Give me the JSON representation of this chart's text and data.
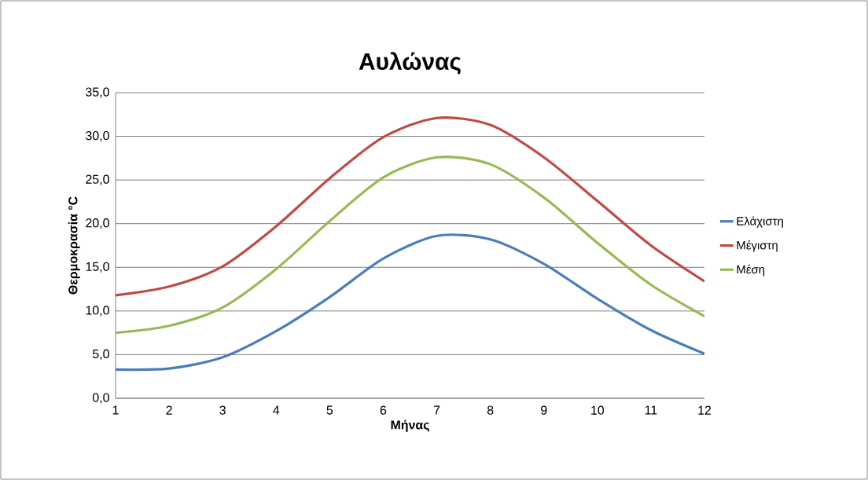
{
  "chart_data": {
    "type": "line",
    "title": "Αυλώνας",
    "xlabel": "Μήνας",
    "ylabel": "Θερμοκρασία °C",
    "x": [
      1,
      2,
      3,
      4,
      5,
      6,
      7,
      8,
      9,
      10,
      11,
      12
    ],
    "series": [
      {
        "name": "Ελάχιστη",
        "color": "#4a7ebb",
        "values": [
          3.3,
          3.4,
          4.7,
          7.7,
          11.6,
          16.0,
          18.6,
          18.2,
          15.4,
          11.4,
          7.8,
          5.1
        ]
      },
      {
        "name": "Μέγιστη",
        "color": "#be4b48",
        "values": [
          11.8,
          12.8,
          15.1,
          19.7,
          25.2,
          29.9,
          32.1,
          31.3,
          27.6,
          22.6,
          17.5,
          13.4
        ]
      },
      {
        "name": "Μέση",
        "color": "#98b954",
        "values": [
          7.5,
          8.3,
          10.4,
          14.8,
          20.3,
          25.3,
          27.6,
          26.8,
          23.0,
          17.8,
          13.0,
          9.4
        ]
      }
    ],
    "xlim": [
      1,
      12
    ],
    "xticks": [
      1,
      2,
      3,
      4,
      5,
      6,
      7,
      8,
      9,
      10,
      11,
      12
    ],
    "ylim": [
      0,
      35
    ],
    "yticks": [
      {
        "value": 0,
        "label": "0,0"
      },
      {
        "value": 5,
        "label": "5,0"
      },
      {
        "value": 10,
        "label": "10,0"
      },
      {
        "value": 15,
        "label": "15,0"
      },
      {
        "value": 20,
        "label": "20,0"
      },
      {
        "value": 25,
        "label": "25,0"
      },
      {
        "value": 30,
        "label": "30,0"
      },
      {
        "value": 35,
        "label": "35,0"
      }
    ],
    "grid": "y",
    "legend": "right",
    "marker": "none",
    "line_style": "solid"
  }
}
